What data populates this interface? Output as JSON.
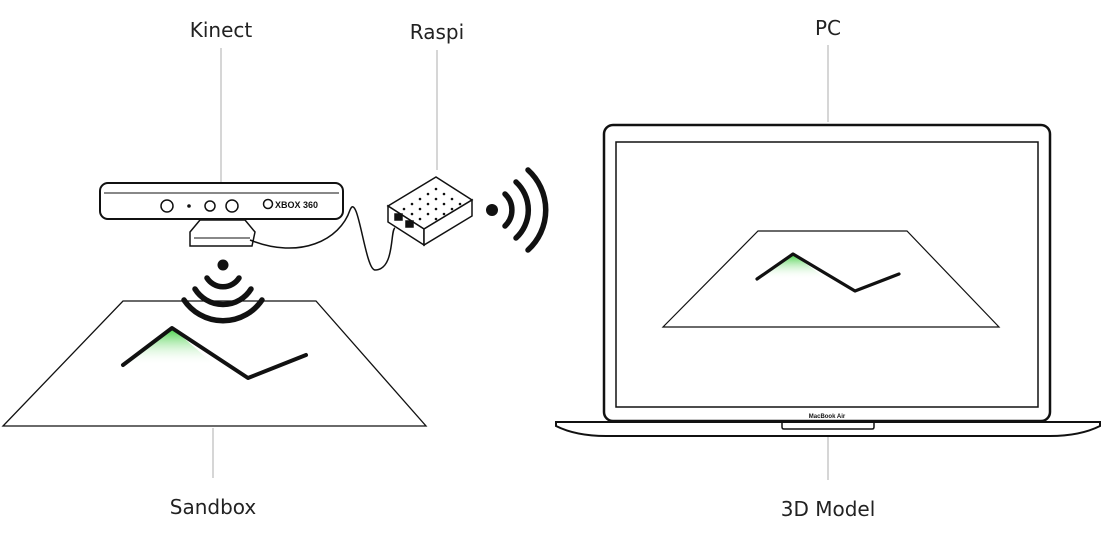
{
  "labels": {
    "kinect": "Kinect",
    "raspi": "Raspi",
    "pc": "PC",
    "sandbox": "Sandbox",
    "model": "3D Model"
  },
  "kinect_brand": "XBOX 360",
  "laptop_brand": "MacBook Air",
  "colors": {
    "terrain_green": "#5cd65c",
    "stroke": "#111111",
    "leader_line": "#c8c8c8"
  }
}
